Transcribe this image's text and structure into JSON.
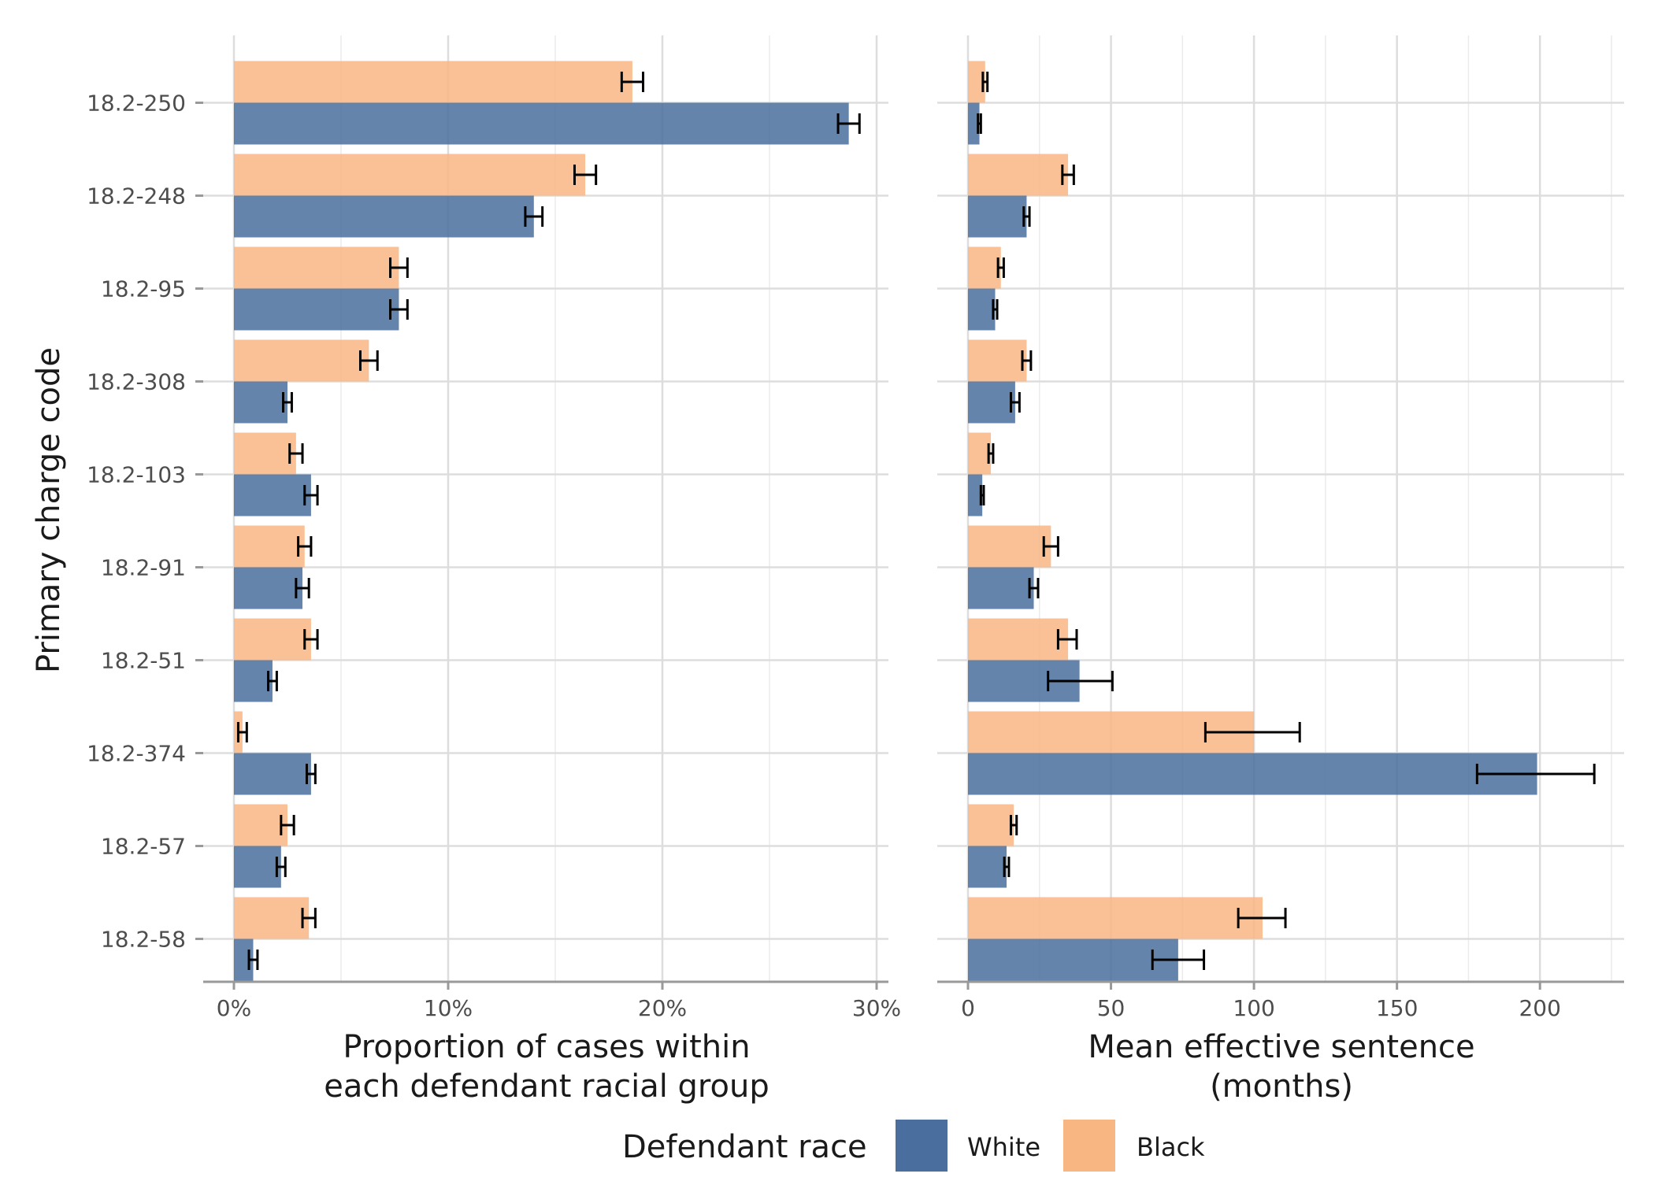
{
  "chart_data": [
    {
      "type": "bar",
      "orientation": "horizontal",
      "panel": "left",
      "categories": [
        "18.2-250",
        "18.2-248",
        "18.2-95",
        "18.2-308",
        "18.2-103",
        "18.2-91",
        "18.2-51",
        "18.2-374",
        "18.2-57",
        "18.2-58"
      ],
      "xlabel": "Proportion of cases within each defendant racial group",
      "xlabel_lines": [
        "Proportion of cases within",
        "each defendant racial group"
      ],
      "ylabel": "Primary charge code",
      "xlim": [
        0,
        30
      ],
      "xticks": [
        0,
        10,
        20,
        30
      ],
      "xtick_labels": [
        "0%",
        "10%",
        "20%",
        "30%"
      ],
      "series": [
        {
          "name": "Black",
          "values": [
            18.6,
            16.4,
            7.7,
            6.3,
            2.9,
            3.3,
            3.6,
            0.4,
            2.5,
            3.5
          ],
          "err_low": [
            18.1,
            15.9,
            7.3,
            5.9,
            2.6,
            3.0,
            3.3,
            0.2,
            2.2,
            3.2
          ],
          "err_high": [
            19.1,
            16.9,
            8.1,
            6.7,
            3.2,
            3.6,
            3.9,
            0.6,
            2.8,
            3.8
          ]
        },
        {
          "name": "White",
          "values": [
            28.7,
            14.0,
            7.7,
            2.5,
            3.6,
            3.2,
            1.8,
            3.6,
            2.2,
            0.9
          ],
          "err_low": [
            28.2,
            13.6,
            7.3,
            2.3,
            3.3,
            2.9,
            1.6,
            3.4,
            2.0,
            0.7
          ],
          "err_high": [
            29.2,
            14.4,
            8.1,
            2.7,
            3.9,
            3.5,
            2.0,
            3.8,
            2.4,
            1.1
          ]
        }
      ]
    },
    {
      "type": "bar",
      "orientation": "horizontal",
      "panel": "right",
      "categories": [
        "18.2-250",
        "18.2-248",
        "18.2-95",
        "18.2-308",
        "18.2-103",
        "18.2-91",
        "18.2-51",
        "18.2-374",
        "18.2-57",
        "18.2-58"
      ],
      "xlabel": "Mean effective sentence (months)",
      "xlabel_lines": [
        "Mean effective sentence",
        "(months)"
      ],
      "xlim": [
        0,
        225
      ],
      "xticks": [
        0,
        50,
        100,
        150,
        200
      ],
      "xtick_labels": [
        "0",
        "50",
        "100",
        "150",
        "200"
      ],
      "series": [
        {
          "name": "Black",
          "values": [
            6,
            35,
            11.5,
            20.5,
            8,
            29,
            35,
            100,
            16,
            103
          ],
          "err_low": [
            5.2,
            33,
            10.5,
            19,
            7.2,
            26.5,
            31.5,
            83,
            15,
            94.5
          ],
          "err_high": [
            6.8,
            37,
            12.5,
            22,
            8.8,
            31.5,
            38,
            116,
            17,
            111
          ]
        },
        {
          "name": "White",
          "values": [
            4,
            20.5,
            9.5,
            16.5,
            5,
            23,
            39,
            199,
            13.5,
            73.5
          ],
          "err_low": [
            3.5,
            19.5,
            8.8,
            15,
            4.5,
            21.5,
            28,
            178,
            12.7,
            64.5
          ],
          "err_high": [
            4.5,
            21.5,
            10.2,
            18,
            5.5,
            24.5,
            50.5,
            219,
            14.3,
            82.5
          ]
        }
      ]
    }
  ],
  "legend": {
    "title": "Defendant race",
    "items": [
      {
        "label": "White",
        "color": "#4a6e9e"
      },
      {
        "label": "Black",
        "color": "#f8b682"
      }
    ]
  },
  "colors": {
    "White": "#4a6e9e",
    "Black": "#f8b682"
  }
}
